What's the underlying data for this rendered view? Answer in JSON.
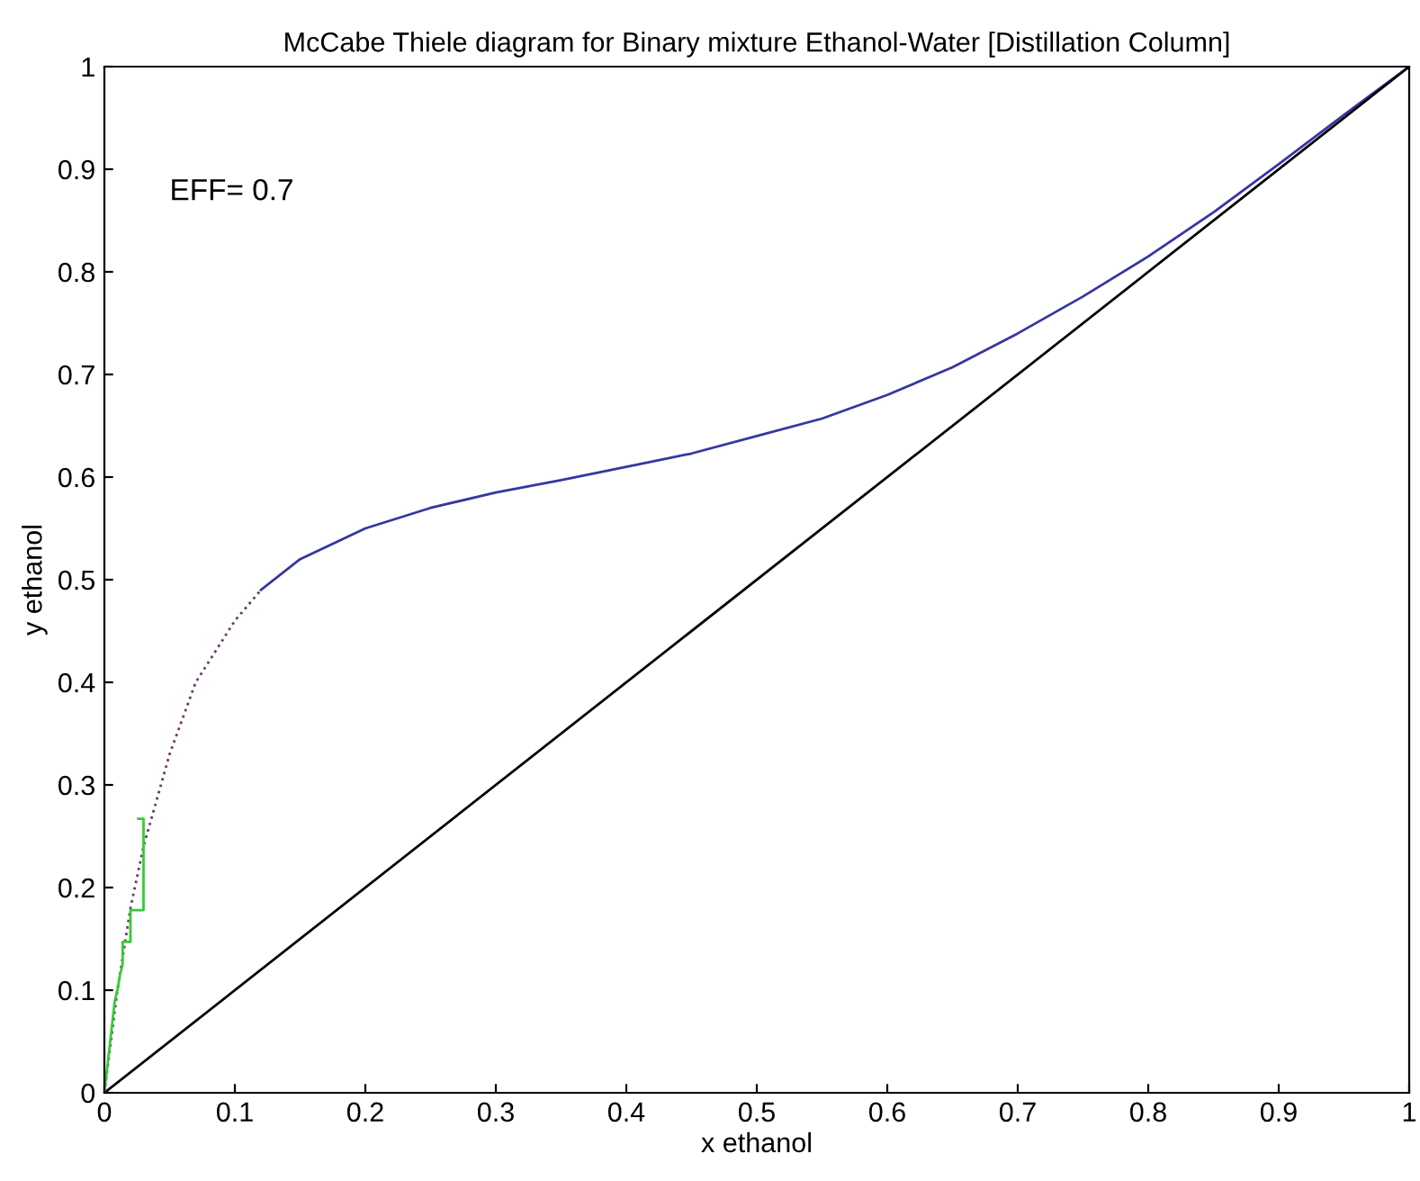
{
  "chart_data": {
    "type": "line",
    "title": "McCabe Thiele diagram for Binary mixture Ethanol-Water [Distillation Column]",
    "xlabel": "x ethanol",
    "ylabel": "y ethanol",
    "annotations": [
      "EFF= 0.7"
    ],
    "xlim": [
      0,
      1
    ],
    "ylim": [
      0,
      1
    ],
    "xticks": [
      0,
      0.1,
      0.2,
      0.3,
      0.4,
      0.5,
      0.6,
      0.7,
      0.8,
      0.9,
      1
    ],
    "yticks": [
      0,
      0.1,
      0.2,
      0.3,
      0.4,
      0.5,
      0.6,
      0.7,
      0.8,
      0.9,
      1
    ],
    "grid": false,
    "legend": false,
    "series": [
      {
        "color": "#6a3a6a",
        "line_style": "dotted",
        "x": [
          0,
          0.01,
          0.02,
          0.03,
          0.05,
          0.07,
          0.1,
          0.12
        ],
        "values": [
          0,
          0.1,
          0.18,
          0.24,
          0.33,
          0.4,
          0.46,
          0.49
        ]
      },
      {
        "color": "#3636a0",
        "line_style": "solid",
        "x": [
          0.12,
          0.15,
          0.2,
          0.25,
          0.3,
          0.35,
          0.4,
          0.45,
          0.5,
          0.55,
          0.6,
          0.65,
          0.7,
          0.75,
          0.8,
          0.85,
          0.9,
          0.95,
          1
        ],
        "values": [
          0.49,
          0.52,
          0.55,
          0.57,
          0.585,
          0.597,
          0.61,
          0.623,
          0.64,
          0.657,
          0.68,
          0.707,
          0.74,
          0.776,
          0.815,
          0.858,
          0.905,
          0.953,
          1
        ]
      },
      {
        "color": "#000000",
        "line_style": "solid",
        "x": [
          0,
          1
        ],
        "values": [
          0,
          1
        ]
      },
      {
        "color": "#33cc33",
        "line_style": "solid",
        "x": [
          0,
          0.008,
          0.01,
          0.012,
          0.014,
          0.014,
          0.02,
          0.02,
          0.03,
          0.03,
          0.026
        ],
        "values": [
          0,
          0.09,
          0.1,
          0.115,
          0.125,
          0.147,
          0.147,
          0.178,
          0.178,
          0.267,
          0.267
        ]
      }
    ]
  }
}
